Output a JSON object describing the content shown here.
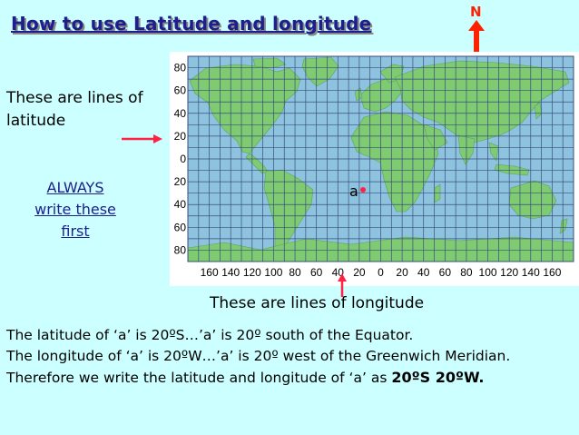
{
  "title": "How to use Latitude and longitude",
  "north": {
    "label": "N"
  },
  "latitude_note": "These are lines of latitude",
  "always_note": {
    "line1": "ALWAYS",
    "line2": "write these",
    "line3": "first"
  },
  "longitude_note": "These are lines of longitude",
  "point_label": "a",
  "map": {
    "lat_labels": [
      "80",
      "60",
      "40",
      "20",
      "0",
      "20",
      "40",
      "60",
      "80"
    ],
    "lon_labels": [
      "160",
      "140",
      "120",
      "100",
      "80",
      "60",
      "40",
      "20",
      "0",
      "20",
      "40",
      "60",
      "80",
      "100",
      "120",
      "140",
      "160"
    ],
    "ocean_color": "#8ec3e0",
    "land_color": "#7ecb72",
    "grid_color": "#3a4d7a"
  },
  "explanation": {
    "line1": "The latitude of ‘a’ is 20ºS…’a’ is 20º south of the Equator.",
    "line2": "The longitude of ‘a’ is 20ºW…’a’ is 20º west of the Greenwich Meridian.",
    "line3_prefix": "Therefore we write the latitude and longitude of ‘a’ as ",
    "line3_bold": "20ºS 20ºW."
  },
  "colors": {
    "title": "#1e1e8c",
    "arrow": "#ff2244",
    "north": "#ff2200",
    "background": "#ccffff"
  }
}
